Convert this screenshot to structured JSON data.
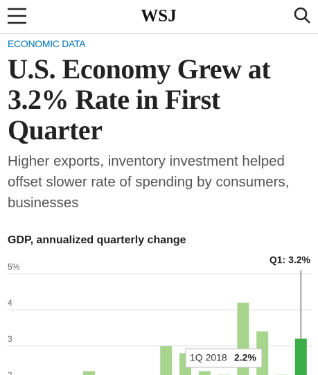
{
  "header": {
    "logo": "WSJ"
  },
  "article": {
    "kicker": "ECONOMIC DATA",
    "headline": "U.S. Economy Grew at 3.2% Rate in First Quarter",
    "dek": "Higher exports, inventory investment helped offset slower rate of spending by consumers, businesses"
  },
  "chart_data": {
    "type": "bar",
    "title": "GDP, annualized quarterly change",
    "categories": [
      null,
      null,
      null,
      null,
      null,
      null,
      null,
      null,
      null,
      null,
      null,
      null
    ],
    "values": [
      2.3,
      null,
      null,
      null,
      3.0,
      2.8,
      2.3,
      2.2,
      4.2,
      3.4,
      2.2,
      3.2
    ],
    "color": "#a8d58e",
    "highlight_color": "#3cae49",
    "ylim": [
      2,
      5
    ],
    "yticks": [
      {
        "value": 5,
        "label": "5%"
      },
      4,
      3,
      2
    ],
    "grid": true,
    "annotation": "Q1: 3.2%",
    "tooltip": {
      "label": "1Q 2018",
      "value_label": "2.2%"
    }
  }
}
